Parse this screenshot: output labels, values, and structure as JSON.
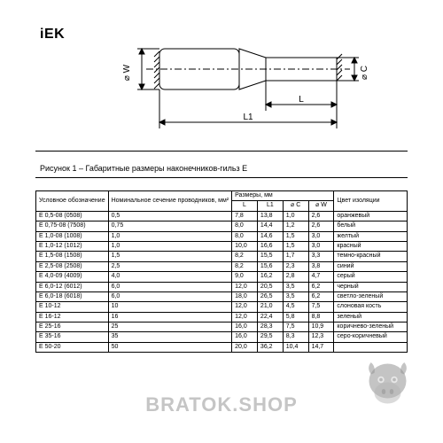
{
  "logo_text": "iEK",
  "caption": "Рисунок 1 – Габаритные размеры наконечников-гильз Е",
  "watermark_text": "BRATOK.SHOP",
  "diagram": {
    "labels": {
      "W": "⌀ W",
      "C": "⌀ C",
      "L": "L",
      "L1": "L1"
    },
    "stroke": "#000000",
    "stroke_width": 1.2
  },
  "table": {
    "headers": {
      "designation": "Условное обозначение",
      "nominal": "Номинальное сечение проводников, мм²",
      "dimensions_group": "Размеры, мм",
      "L": "L",
      "L1": "L1",
      "C": "⌀ C",
      "W": "⌀ W",
      "color": "Цвет изоляции"
    },
    "rows": [
      {
        "d": "Е 0,5-08 (0508)",
        "n": "0,5",
        "L": "7,8",
        "L1": "13,8",
        "C": "1,0",
        "W": "2,6",
        "color": "оранжевый"
      },
      {
        "d": "Е 0,75-08 (7508)",
        "n": "0,75",
        "L": "8,0",
        "L1": "14,4",
        "C": "1,2",
        "W": "2,6",
        "color": "белый"
      },
      {
        "d": "Е 1,0-08 (1008)",
        "n": "1,0",
        "L": "8,0",
        "L1": "14,6",
        "C": "1,5",
        "W": "3,0",
        "color": "желтый"
      },
      {
        "d": "Е 1,0-12 (1012)",
        "n": "1,0",
        "L": "10,0",
        "L1": "16,6",
        "C": "1,5",
        "W": "3,0",
        "color": "красный"
      },
      {
        "d": "Е 1,5-08 (1508)",
        "n": "1,5",
        "L": "8,2",
        "L1": "15,5",
        "C": "1,7",
        "W": "3,3",
        "color": "темно-красный"
      },
      {
        "d": "Е 2,5-08 (2508)",
        "n": "2,5",
        "L": "8,2",
        "L1": "15,6",
        "C": "2,3",
        "W": "3,8",
        "color": "синий"
      },
      {
        "d": "Е 4,0-09 (4009)",
        "n": "4,0",
        "L": "9,0",
        "L1": "16,2",
        "C": "2,8",
        "W": "4,7",
        "color": "серый"
      },
      {
        "d": "Е 6,0-12 (6012)",
        "n": "6,0",
        "L": "12,0",
        "L1": "20,5",
        "C": "3,5",
        "W": "6,2",
        "color": "черный"
      },
      {
        "d": "Е 6,0-18 (6018)",
        "n": "6,0",
        "L": "18,0",
        "L1": "26,5",
        "C": "3,5",
        "W": "6,2",
        "color": "светло-зеленый"
      },
      {
        "d": "Е 10-12",
        "n": "10",
        "L": "12,0",
        "L1": "21,0",
        "C": "4,5",
        "W": "7,5",
        "color": "слоновая кость"
      },
      {
        "d": "Е 16-12",
        "n": "16",
        "L": "12,0",
        "L1": "22,4",
        "C": "5,8",
        "W": "8,8",
        "color": "зеленый"
      },
      {
        "d": "Е 25-16",
        "n": "25",
        "L": "16,0",
        "L1": "28,3",
        "C": "7,5",
        "W": "10,9",
        "color": "коричнево-зеленый"
      },
      {
        "d": "Е 35-16",
        "n": "35",
        "L": "16,0",
        "L1": "29,5",
        "C": "8,3",
        "W": "12,3",
        "color": "серо-коричневый"
      },
      {
        "d": "Е 50-20",
        "n": "50",
        "L": "20,0",
        "L1": "36,2",
        "C": "10,4",
        "W": "14,7",
        "color": ""
      }
    ]
  },
  "gorilla": {
    "fill": "rgba(60,60,60,0.55)"
  }
}
